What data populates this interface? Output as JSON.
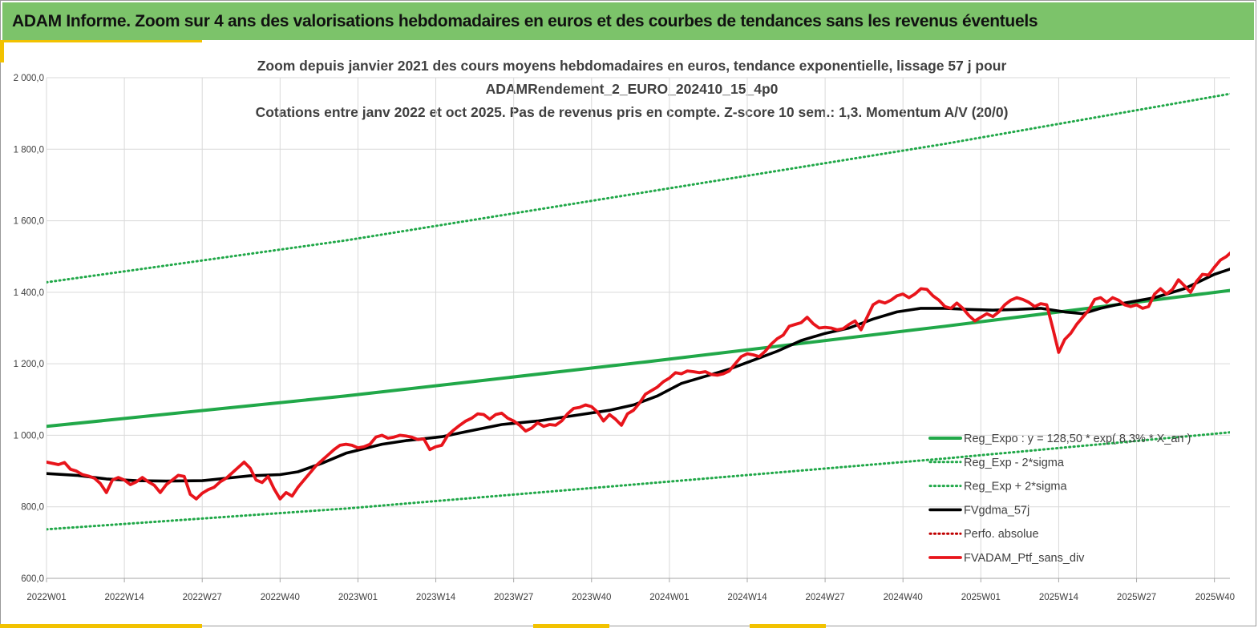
{
  "header": {
    "title": "ADAM Informe. Zoom sur 4 ans des valorisations hebdomadaires en euros et des courbes de tendances sans les revenus éventuels"
  },
  "colors": {
    "header_bg": "#7cc36a",
    "accent": "#f2c200",
    "trend": "#21a849",
    "sigma": "#21a849",
    "moving_average": "#000000",
    "portfolio": "#e8141b",
    "perf_absolue": "#c00000"
  },
  "chart_data": {
    "type": "line",
    "title_lines": [
      "Zoom depuis janvier 2021 des cours moyens hebdomadaires  en euros, tendance exponentielle, lissage 57 j pour",
      "ADAMRendement_2_EURO_202410_15_4p0",
      "Cotations  entre janv 2022 et oct 2025. Pas de revenus pris en compte. Z-score 10 sem.: 1,3. Momentum A/V (20/0)"
    ],
    "ylim": [
      600,
      2000
    ],
    "yticks": [
      "600,0",
      "800,0",
      "1 000,0",
      "1 200,0",
      "1 400,0",
      "1 600,0",
      "1 800,0",
      "2 000,0"
    ],
    "yticks_values": [
      600,
      800,
      1000,
      1200,
      1400,
      1600,
      1800,
      2000
    ],
    "xlim": [
      0,
      193
    ],
    "xticks": [
      {
        "label": "2022W01",
        "week": 0
      },
      {
        "label": "2022W14",
        "week": 13
      },
      {
        "label": "2022W27",
        "week": 26
      },
      {
        "label": "2022W40",
        "week": 39
      },
      {
        "label": "2023W01",
        "week": 52
      },
      {
        "label": "2023W14",
        "week": 65
      },
      {
        "label": "2023W27",
        "week": 78
      },
      {
        "label": "2023W40",
        "week": 91
      },
      {
        "label": "2024W01",
        "week": 104
      },
      {
        "label": "2024W14",
        "week": 117
      },
      {
        "label": "2024W27",
        "week": 130
      },
      {
        "label": "2024W40",
        "week": 143
      },
      {
        "label": "2025W01",
        "week": 156
      },
      {
        "label": "2025W14",
        "week": 169
      },
      {
        "label": "2025W27",
        "week": 182
      },
      {
        "label": "2025W40",
        "week": 195
      }
    ],
    "grid": true,
    "legend_position": "bottom-right",
    "series": [
      {
        "name": "Reg_Expo : y = 128,50 * exp( 8,3% * X_an )",
        "style": "solid-green",
        "points": [
          [
            0,
            1025
          ],
          [
            50,
            1110
          ],
          [
            100,
            1205
          ],
          [
            150,
            1305
          ],
          [
            200,
            1410
          ]
        ]
      },
      {
        "name": "Reg_Exp - 2*sigma",
        "style": "dotted-green",
        "points": [
          [
            0,
            737
          ],
          [
            50,
            795
          ],
          [
            100,
            865
          ],
          [
            150,
            935
          ],
          [
            200,
            1012
          ]
        ]
      },
      {
        "name": "Reg_Exp + 2*sigma",
        "style": "dotted-green",
        "points": [
          [
            0,
            1428
          ],
          [
            50,
            1545
          ],
          [
            100,
            1680
          ],
          [
            150,
            1815
          ],
          [
            200,
            1962
          ]
        ]
      },
      {
        "name": "FVgdma_57j",
        "style": "solid-black",
        "points": [
          [
            0,
            893
          ],
          [
            5,
            888
          ],
          [
            10,
            878
          ],
          [
            15,
            873
          ],
          [
            20,
            872
          ],
          [
            26,
            873
          ],
          [
            30,
            880
          ],
          [
            34,
            887
          ],
          [
            39,
            890
          ],
          [
            42,
            898
          ],
          [
            46,
            922
          ],
          [
            50,
            950
          ],
          [
            56,
            975
          ],
          [
            60,
            985
          ],
          [
            66,
            996
          ],
          [
            70,
            1010
          ],
          [
            76,
            1030
          ],
          [
            82,
            1040
          ],
          [
            88,
            1055
          ],
          [
            94,
            1070
          ],
          [
            98,
            1085
          ],
          [
            102,
            1110
          ],
          [
            106,
            1145
          ],
          [
            110,
            1165
          ],
          [
            114,
            1185
          ],
          [
            118,
            1210
          ],
          [
            122,
            1235
          ],
          [
            126,
            1265
          ],
          [
            130,
            1285
          ],
          [
            134,
            1300
          ],
          [
            138,
            1325
          ],
          [
            142,
            1345
          ],
          [
            146,
            1355
          ],
          [
            150,
            1355
          ],
          [
            154,
            1352
          ],
          [
            158,
            1350
          ],
          [
            162,
            1352
          ],
          [
            166,
            1355
          ],
          [
            170,
            1345
          ],
          [
            173,
            1340
          ],
          [
            176,
            1355
          ],
          [
            180,
            1370
          ],
          [
            185,
            1385
          ],
          [
            190,
            1410
          ],
          [
            195,
            1450
          ],
          [
            200,
            1478
          ]
        ]
      },
      {
        "name": "Perfo. absolue",
        "style": "dotted-red",
        "points": []
      },
      {
        "name": "FVADAM_Ptf_sans_div",
        "style": "solid-red",
        "points": [
          [
            0,
            925
          ],
          [
            2,
            918
          ],
          [
            3,
            924
          ],
          [
            4,
            905
          ],
          [
            5,
            900
          ],
          [
            6,
            890
          ],
          [
            7,
            886
          ],
          [
            8,
            880
          ],
          [
            9,
            865
          ],
          [
            10,
            840
          ],
          [
            11,
            875
          ],
          [
            12,
            882
          ],
          [
            13,
            875
          ],
          [
            14,
            862
          ],
          [
            15,
            870
          ],
          [
            16,
            882
          ],
          [
            17,
            870
          ],
          [
            18,
            860
          ],
          [
            19,
            840
          ],
          [
            20,
            862
          ],
          [
            21,
            875
          ],
          [
            22,
            888
          ],
          [
            23,
            885
          ],
          [
            24,
            835
          ],
          [
            25,
            822
          ],
          [
            26,
            838
          ],
          [
            27,
            848
          ],
          [
            28,
            855
          ],
          [
            29,
            870
          ],
          [
            30,
            880
          ],
          [
            31,
            895
          ],
          [
            32,
            910
          ],
          [
            33,
            925
          ],
          [
            34,
            908
          ],
          [
            35,
            875
          ],
          [
            36,
            868
          ],
          [
            37,
            885
          ],
          [
            38,
            850
          ],
          [
            39,
            822
          ],
          [
            40,
            840
          ],
          [
            41,
            830
          ],
          [
            42,
            855
          ],
          [
            43,
            875
          ],
          [
            44,
            895
          ],
          [
            45,
            915
          ],
          [
            46,
            930
          ],
          [
            47,
            945
          ],
          [
            48,
            960
          ],
          [
            49,
            972
          ],
          [
            50,
            975
          ],
          [
            51,
            972
          ],
          [
            52,
            965
          ],
          [
            53,
            968
          ],
          [
            54,
            975
          ],
          [
            55,
            995
          ],
          [
            56,
            1000
          ],
          [
            57,
            992
          ],
          [
            58,
            995
          ],
          [
            59,
            1000
          ],
          [
            60,
            998
          ],
          [
            61,
            995
          ],
          [
            62,
            988
          ],
          [
            63,
            990
          ],
          [
            64,
            960
          ],
          [
            65,
            968
          ],
          [
            66,
            972
          ],
          [
            67,
            1000
          ],
          [
            68,
            1015
          ],
          [
            69,
            1028
          ],
          [
            70,
            1040
          ],
          [
            71,
            1048
          ],
          [
            72,
            1060
          ],
          [
            73,
            1058
          ],
          [
            74,
            1045
          ],
          [
            75,
            1058
          ],
          [
            76,
            1062
          ],
          [
            77,
            1048
          ],
          [
            78,
            1040
          ],
          [
            79,
            1028
          ],
          [
            80,
            1012
          ],
          [
            81,
            1020
          ],
          [
            82,
            1035
          ],
          [
            83,
            1025
          ],
          [
            84,
            1030
          ],
          [
            85,
            1028
          ],
          [
            86,
            1040
          ],
          [
            87,
            1060
          ],
          [
            88,
            1075
          ],
          [
            89,
            1078
          ],
          [
            90,
            1085
          ],
          [
            91,
            1080
          ],
          [
            92,
            1065
          ],
          [
            93,
            1040
          ],
          [
            94,
            1058
          ],
          [
            95,
            1045
          ],
          [
            96,
            1028
          ],
          [
            97,
            1060
          ],
          [
            98,
            1070
          ],
          [
            99,
            1090
          ],
          [
            100,
            1115
          ],
          [
            101,
            1125
          ],
          [
            102,
            1135
          ],
          [
            103,
            1150
          ],
          [
            104,
            1160
          ],
          [
            105,
            1175
          ],
          [
            106,
            1172
          ],
          [
            107,
            1180
          ],
          [
            108,
            1178
          ],
          [
            109,
            1175
          ],
          [
            110,
            1178
          ],
          [
            111,
            1170
          ],
          [
            112,
            1168
          ],
          [
            113,
            1172
          ],
          [
            114,
            1180
          ],
          [
            115,
            1200
          ],
          [
            116,
            1220
          ],
          [
            117,
            1228
          ],
          [
            118,
            1225
          ],
          [
            119,
            1220
          ],
          [
            120,
            1235
          ],
          [
            121,
            1255
          ],
          [
            122,
            1270
          ],
          [
            123,
            1280
          ],
          [
            124,
            1305
          ],
          [
            125,
            1310
          ],
          [
            126,
            1315
          ],
          [
            127,
            1330
          ],
          [
            128,
            1312
          ],
          [
            129,
            1300
          ],
          [
            130,
            1302
          ],
          [
            131,
            1300
          ],
          [
            132,
            1295
          ],
          [
            133,
            1298
          ],
          [
            134,
            1310
          ],
          [
            135,
            1320
          ],
          [
            136,
            1295
          ],
          [
            137,
            1330
          ],
          [
            138,
            1365
          ],
          [
            139,
            1375
          ],
          [
            140,
            1370
          ],
          [
            141,
            1378
          ],
          [
            142,
            1390
          ],
          [
            143,
            1395
          ],
          [
            144,
            1385
          ],
          [
            145,
            1395
          ],
          [
            146,
            1410
          ],
          [
            147,
            1408
          ],
          [
            148,
            1390
          ],
          [
            149,
            1378
          ],
          [
            150,
            1360
          ],
          [
            151,
            1355
          ],
          [
            152,
            1370
          ],
          [
            153,
            1355
          ],
          [
            154,
            1335
          ],
          [
            155,
            1320
          ],
          [
            156,
            1330
          ],
          [
            157,
            1340
          ],
          [
            158,
            1332
          ],
          [
            159,
            1345
          ],
          [
            160,
            1365
          ],
          [
            161,
            1378
          ],
          [
            162,
            1385
          ],
          [
            163,
            1380
          ],
          [
            164,
            1372
          ],
          [
            165,
            1360
          ],
          [
            166,
            1368
          ],
          [
            167,
            1365
          ],
          [
            168,
            1300
          ],
          [
            169,
            1232
          ],
          [
            170,
            1268
          ],
          [
            171,
            1285
          ],
          [
            172,
            1310
          ],
          [
            173,
            1330
          ],
          [
            174,
            1350
          ],
          [
            175,
            1380
          ],
          [
            176,
            1385
          ],
          [
            177,
            1372
          ],
          [
            178,
            1385
          ],
          [
            179,
            1378
          ],
          [
            180,
            1365
          ],
          [
            181,
            1360
          ],
          [
            182,
            1365
          ],
          [
            183,
            1355
          ],
          [
            184,
            1360
          ],
          [
            185,
            1395
          ],
          [
            186,
            1410
          ],
          [
            187,
            1395
          ],
          [
            188,
            1408
          ],
          [
            189,
            1435
          ],
          [
            190,
            1418
          ],
          [
            191,
            1400
          ],
          [
            192,
            1430
          ],
          [
            193,
            1450
          ],
          [
            194,
            1448
          ],
          [
            195,
            1470
          ],
          [
            196,
            1490
          ],
          [
            197,
            1500
          ],
          [
            198,
            1515
          ],
          [
            199,
            1512
          ],
          [
            200,
            1508
          ]
        ]
      }
    ]
  }
}
